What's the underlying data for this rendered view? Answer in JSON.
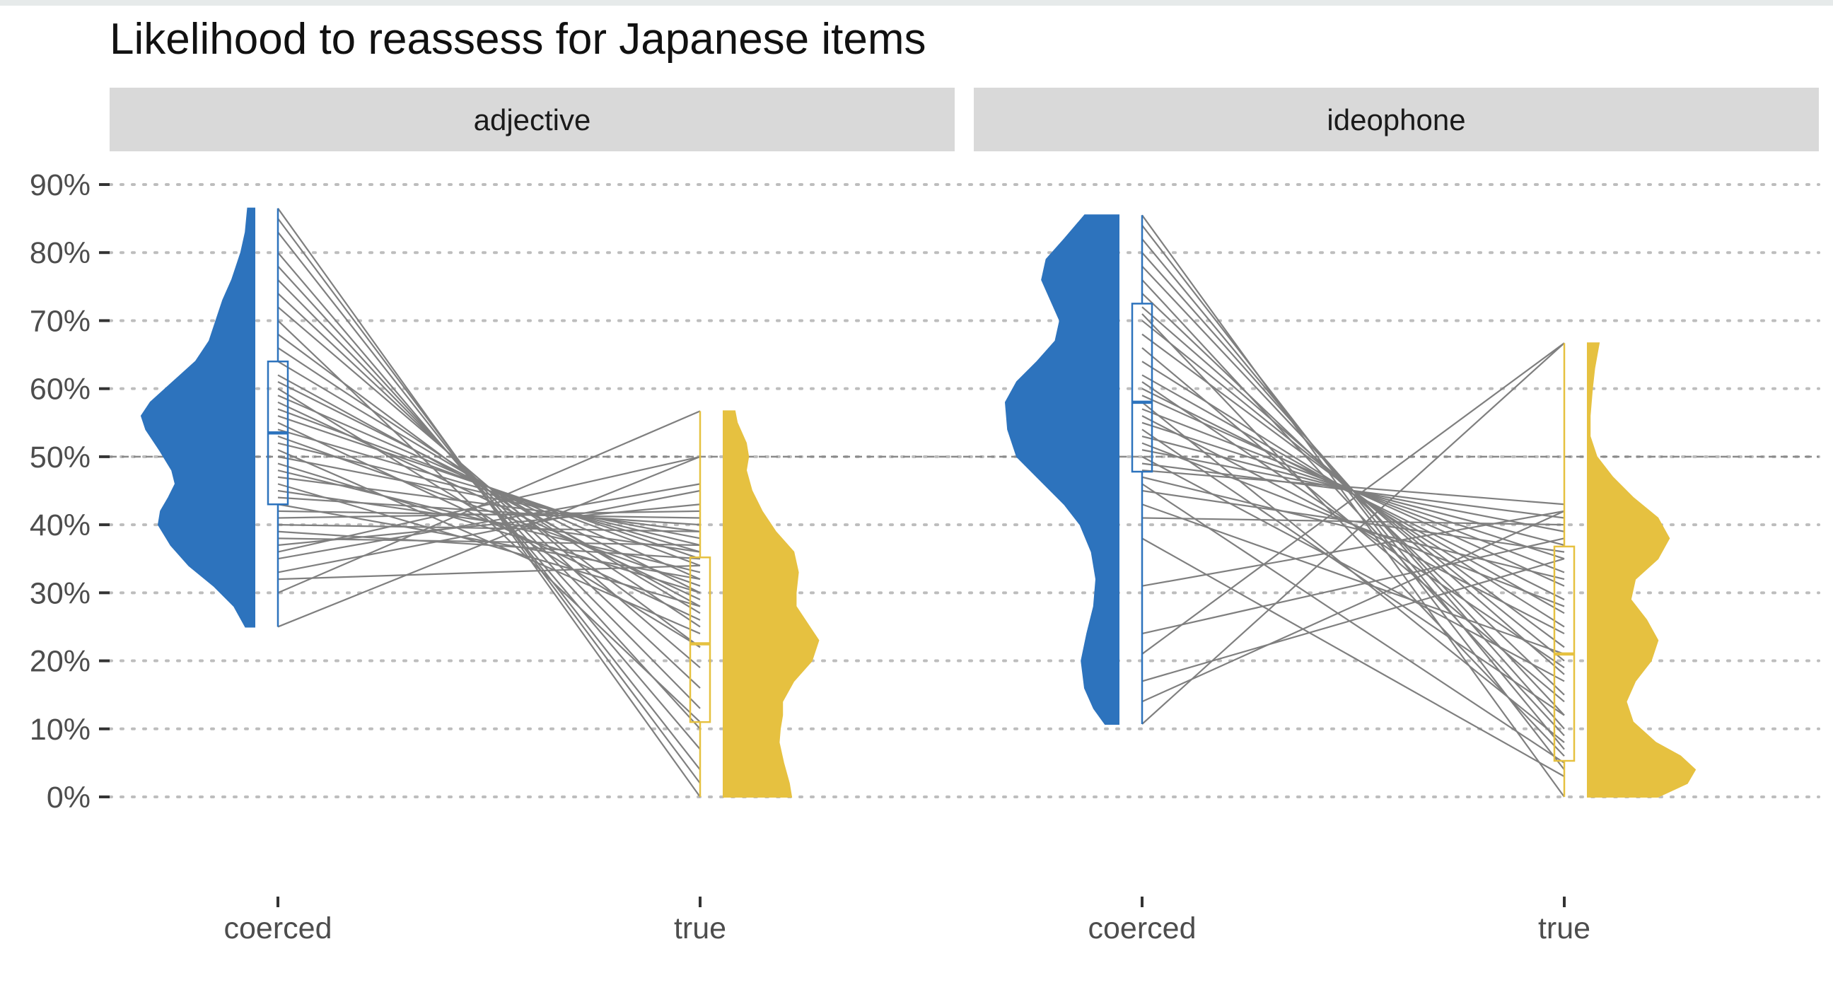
{
  "chart_data": {
    "type": "raincloud",
    "title": "Likelihood to reassess for Japanese items",
    "xlabel": "",
    "ylabel": "",
    "ylim": [
      0,
      0.9
    ],
    "y_ticks": [
      "0%",
      "10%",
      "20%",
      "30%",
      "40%",
      "50%",
      "60%",
      "70%",
      "80%",
      "90%"
    ],
    "reference_line": 0.5,
    "grid": "horizontal dotted",
    "categories": [
      "coerced",
      "true"
    ],
    "colors": {
      "coerced": "#2d73bd",
      "true": "#e6c140",
      "lines": "#7f7f7f",
      "strip": "#d9d9d9"
    },
    "panels": [
      {
        "name": "adjective",
        "boxes": [
          {
            "category": "coerced",
            "min": 0.25,
            "q1": 0.43,
            "median": 0.535,
            "q3": 0.64,
            "max": 0.865
          },
          {
            "category": "true",
            "min": 0.0,
            "q1": 0.11,
            "median": 0.225,
            "q3": 0.352,
            "max": 0.567
          }
        ],
        "density": {
          "coerced": [
            [
              0.25,
              0.08
            ],
            [
              0.28,
              0.18
            ],
            [
              0.31,
              0.36
            ],
            [
              0.34,
              0.58
            ],
            [
              0.37,
              0.74
            ],
            [
              0.4,
              0.85
            ],
            [
              0.42,
              0.83
            ],
            [
              0.44,
              0.76
            ],
            [
              0.46,
              0.7
            ],
            [
              0.48,
              0.73
            ],
            [
              0.51,
              0.84
            ],
            [
              0.54,
              0.96
            ],
            [
              0.56,
              1.0
            ],
            [
              0.58,
              0.92
            ],
            [
              0.61,
              0.72
            ],
            [
              0.64,
              0.52
            ],
            [
              0.67,
              0.4
            ],
            [
              0.7,
              0.34
            ],
            [
              0.73,
              0.28
            ],
            [
              0.76,
              0.2
            ],
            [
              0.8,
              0.12
            ],
            [
              0.83,
              0.08
            ],
            [
              0.865,
              0.06
            ]
          ],
          "true": [
            [
              0.0,
              0.6
            ],
            [
              0.02,
              0.58
            ],
            [
              0.05,
              0.53
            ],
            [
              0.08,
              0.49
            ],
            [
              0.1,
              0.5
            ],
            [
              0.12,
              0.52
            ],
            [
              0.14,
              0.52
            ],
            [
              0.17,
              0.62
            ],
            [
              0.2,
              0.78
            ],
            [
              0.23,
              0.84
            ],
            [
              0.26,
              0.72
            ],
            [
              0.28,
              0.64
            ],
            [
              0.3,
              0.64
            ],
            [
              0.33,
              0.66
            ],
            [
              0.36,
              0.62
            ],
            [
              0.39,
              0.46
            ],
            [
              0.42,
              0.34
            ],
            [
              0.45,
              0.25
            ],
            [
              0.48,
              0.2
            ],
            [
              0.5,
              0.22
            ],
            [
              0.52,
              0.2
            ],
            [
              0.55,
              0.12
            ],
            [
              0.567,
              0.1
            ]
          ]
        },
        "pairs": [
          [
            0.865,
            0.0
          ],
          [
            0.85,
            0.02
          ],
          [
            0.83,
            0.04
          ],
          [
            0.8,
            0.07
          ],
          [
            0.78,
            0.1
          ],
          [
            0.76,
            0.13
          ],
          [
            0.74,
            0.16
          ],
          [
            0.72,
            0.19
          ],
          [
            0.7,
            0.11
          ],
          [
            0.68,
            0.22
          ],
          [
            0.66,
            0.25
          ],
          [
            0.64,
            0.27
          ],
          [
            0.62,
            0.28
          ],
          [
            0.61,
            0.3
          ],
          [
            0.6,
            0.22
          ],
          [
            0.59,
            0.32
          ],
          [
            0.58,
            0.29
          ],
          [
            0.57,
            0.34
          ],
          [
            0.56,
            0.35
          ],
          [
            0.55,
            0.26
          ],
          [
            0.54,
            0.36
          ],
          [
            0.53,
            0.31
          ],
          [
            0.52,
            0.37
          ],
          [
            0.51,
            0.24
          ],
          [
            0.5,
            0.38
          ],
          [
            0.49,
            0.3
          ],
          [
            0.48,
            0.33
          ],
          [
            0.47,
            0.39
          ],
          [
            0.46,
            0.28
          ],
          [
            0.45,
            0.36
          ],
          [
            0.44,
            0.4
          ],
          [
            0.43,
            0.32
          ],
          [
            0.42,
            0.41
          ],
          [
            0.41,
            0.42
          ],
          [
            0.4,
            0.39
          ],
          [
            0.39,
            0.35
          ],
          [
            0.38,
            0.37
          ],
          [
            0.37,
            0.43
          ],
          [
            0.36,
            0.5
          ],
          [
            0.35,
            0.46
          ],
          [
            0.33,
            0.45
          ],
          [
            0.32,
            0.34
          ],
          [
            0.3,
            0.567
          ],
          [
            0.25,
            0.5
          ]
        ]
      },
      {
        "name": "ideophone",
        "boxes": [
          {
            "category": "coerced",
            "min": 0.107,
            "q1": 0.478,
            "median": 0.58,
            "q3": 0.725,
            "max": 0.855
          },
          {
            "category": "true",
            "min": 0.0,
            "q1": 0.053,
            "median": 0.21,
            "q3": 0.368,
            "max": 0.667
          }
        ],
        "density": {
          "coerced": [
            [
              0.107,
              0.12
            ],
            [
              0.13,
              0.22
            ],
            [
              0.16,
              0.3
            ],
            [
              0.2,
              0.33
            ],
            [
              0.24,
              0.28
            ],
            [
              0.28,
              0.22
            ],
            [
              0.32,
              0.2
            ],
            [
              0.36,
              0.24
            ],
            [
              0.4,
              0.34
            ],
            [
              0.43,
              0.48
            ],
            [
              0.47,
              0.72
            ],
            [
              0.5,
              0.9
            ],
            [
              0.54,
              0.98
            ],
            [
              0.58,
              1.0
            ],
            [
              0.61,
              0.9
            ],
            [
              0.64,
              0.72
            ],
            [
              0.67,
              0.56
            ],
            [
              0.7,
              0.52
            ],
            [
              0.73,
              0.6
            ],
            [
              0.76,
              0.68
            ],
            [
              0.79,
              0.64
            ],
            [
              0.82,
              0.48
            ],
            [
              0.855,
              0.3
            ]
          ],
          "true": [
            [
              0.0,
              0.62
            ],
            [
              0.02,
              0.88
            ],
            [
              0.04,
              0.95
            ],
            [
              0.06,
              0.82
            ],
            [
              0.08,
              0.6
            ],
            [
              0.11,
              0.4
            ],
            [
              0.14,
              0.34
            ],
            [
              0.17,
              0.42
            ],
            [
              0.2,
              0.56
            ],
            [
              0.23,
              0.62
            ],
            [
              0.26,
              0.52
            ],
            [
              0.29,
              0.38
            ],
            [
              0.32,
              0.42
            ],
            [
              0.35,
              0.62
            ],
            [
              0.38,
              0.72
            ],
            [
              0.41,
              0.62
            ],
            [
              0.44,
              0.4
            ],
            [
              0.47,
              0.22
            ],
            [
              0.5,
              0.08
            ],
            [
              0.53,
              0.02
            ],
            [
              0.56,
              0.02
            ],
            [
              0.6,
              0.04
            ],
            [
              0.63,
              0.06
            ],
            [
              0.667,
              0.1
            ]
          ]
        },
        "pairs": [
          [
            0.855,
            0.0
          ],
          [
            0.84,
            0.04
          ],
          [
            0.82,
            0.07
          ],
          [
            0.8,
            0.1
          ],
          [
            0.78,
            0.12
          ],
          [
            0.76,
            0.09
          ],
          [
            0.74,
            0.15
          ],
          [
            0.72,
            0.18
          ],
          [
            0.71,
            0.06
          ],
          [
            0.7,
            0.2
          ],
          [
            0.68,
            0.22
          ],
          [
            0.66,
            0.14
          ],
          [
            0.64,
            0.25
          ],
          [
            0.62,
            0.27
          ],
          [
            0.61,
            0.19
          ],
          [
            0.6,
            0.29
          ],
          [
            0.59,
            0.31
          ],
          [
            0.58,
            0.08
          ],
          [
            0.57,
            0.33
          ],
          [
            0.56,
            0.24
          ],
          [
            0.55,
            0.35
          ],
          [
            0.54,
            0.12
          ],
          [
            0.53,
            0.37
          ],
          [
            0.52,
            0.28
          ],
          [
            0.51,
            0.39
          ],
          [
            0.5,
            0.17
          ],
          [
            0.49,
            0.41
          ],
          [
            0.48,
            0.43
          ],
          [
            0.47,
            0.32
          ],
          [
            0.46,
            0.05
          ],
          [
            0.45,
            0.36
          ],
          [
            0.43,
            0.21
          ],
          [
            0.41,
            0.4
          ],
          [
            0.38,
            0.03
          ],
          [
            0.31,
            0.42
          ],
          [
            0.24,
            0.38
          ],
          [
            0.21,
            0.667
          ],
          [
            0.17,
            0.35
          ],
          [
            0.14,
            0.42
          ],
          [
            0.107,
            0.667
          ]
        ]
      }
    ]
  }
}
